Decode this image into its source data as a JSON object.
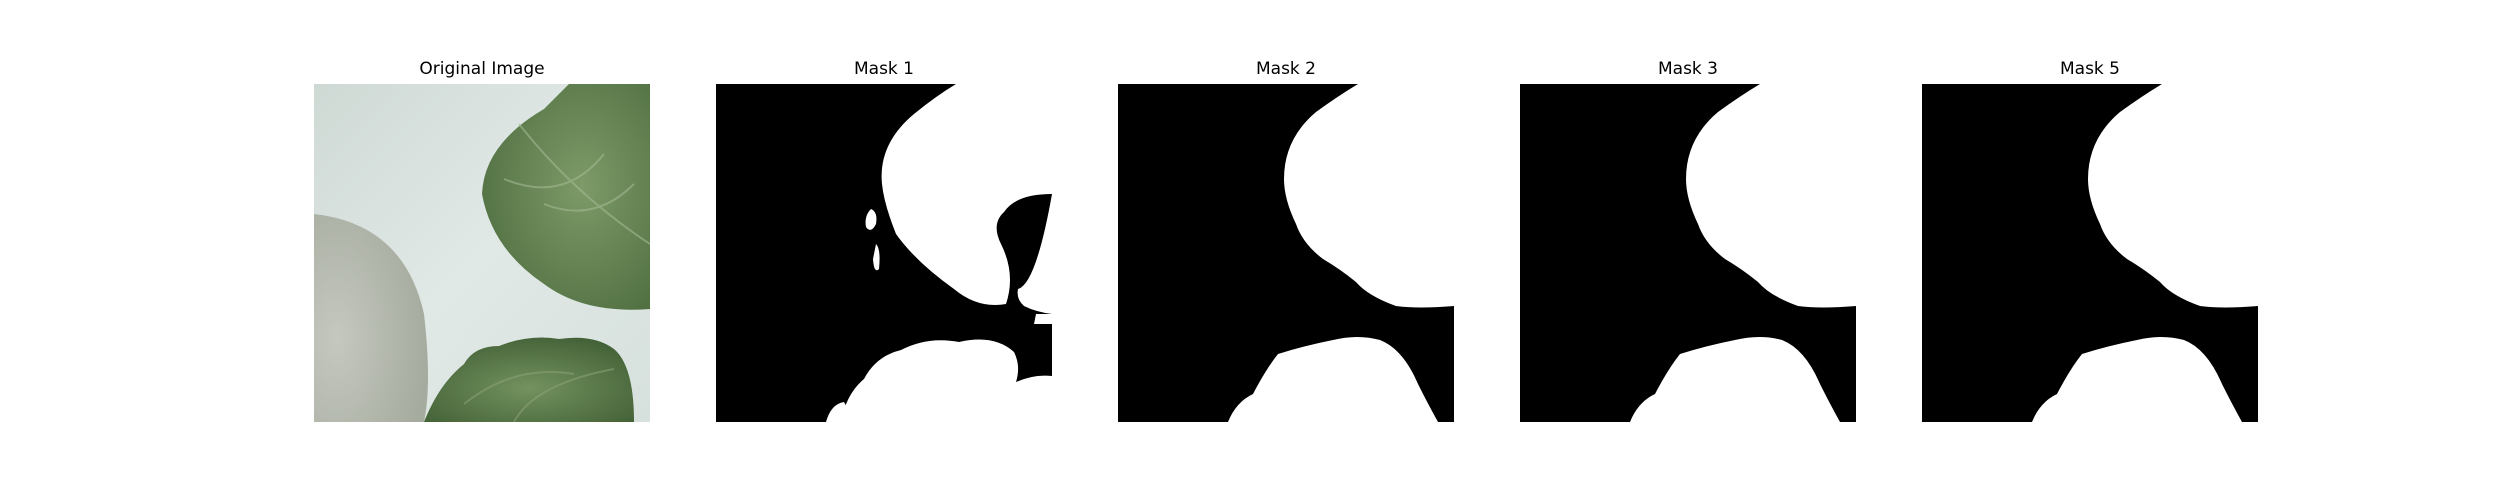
{
  "figure": {
    "panels": [
      {
        "title": "Original Image"
      },
      {
        "title": "Mask 1"
      },
      {
        "title": "Mask 2"
      },
      {
        "title": "Mask 3"
      },
      {
        "title": "Mask 5"
      }
    ]
  },
  "colors": {
    "background": "#ffffff",
    "mask_background": "#000000",
    "mask_foreground": "#ffffff",
    "leaf_green": "#6e8d5c",
    "leaf_dark": "#4f6e40",
    "surface_light": "#dfe8e6",
    "bowl_gray": "#b9bdb4"
  }
}
